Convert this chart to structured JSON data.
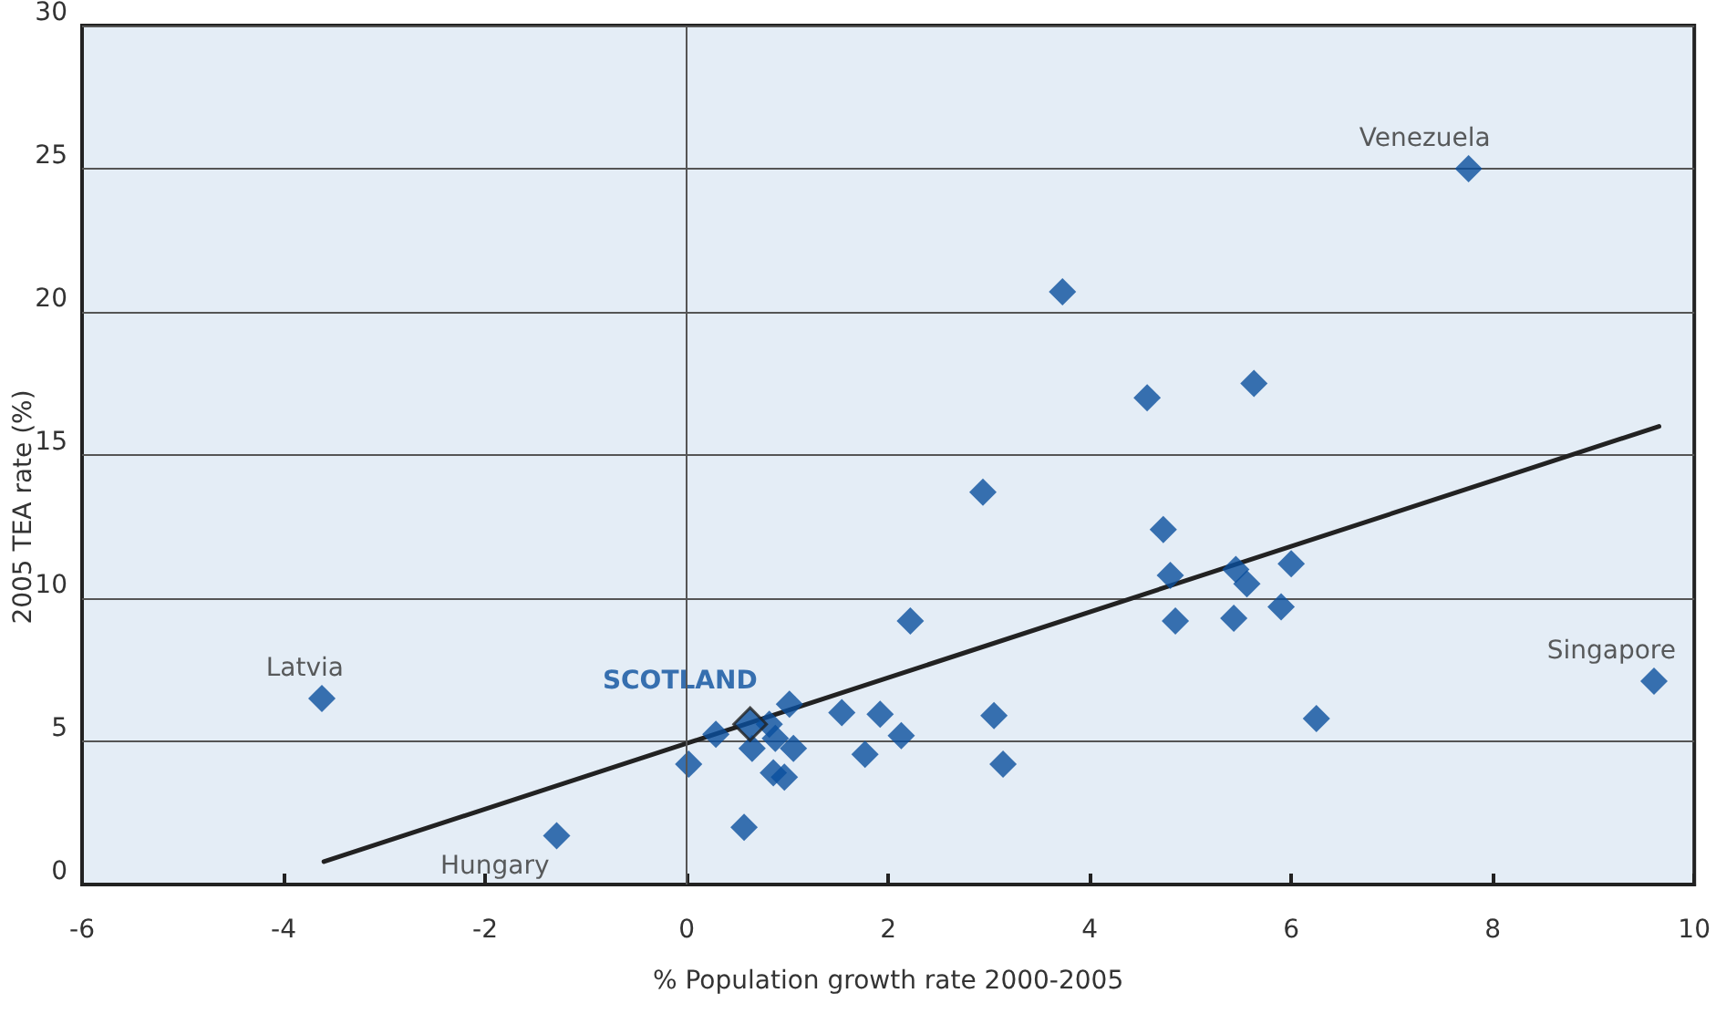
{
  "chart_data": {
    "type": "scatter",
    "xlabel": "% Population growth rate 2000-2005",
    "ylabel": "2005 TEA rate (%)",
    "marker": "diamond",
    "grid": "y",
    "ref_lines": [
      {
        "axis": "x",
        "value": 0,
        "color": "#555555"
      }
    ],
    "xlim": [
      -6,
      10
    ],
    "xticks": [
      -6,
      -4,
      -2,
      0,
      2,
      4,
      6,
      8,
      10
    ],
    "ylim": [
      0,
      30
    ],
    "yticks": [
      0,
      5,
      10,
      15,
      20,
      25,
      30
    ],
    "series": [
      {
        "color": "#0a4f9e",
        "x": [
          7.76,
          3.73,
          4.57,
          5.63,
          2.94,
          4.73,
          4.8,
          5.45,
          5.56,
          6.0,
          4.85,
          5.43,
          5.9,
          2.22,
          6.25,
          9.6,
          -3.62,
          -1.29,
          0.29,
          1.02,
          0.82,
          0.88,
          0.65,
          1.06,
          0.02,
          0.86,
          0.97,
          0.57,
          1.54,
          1.92,
          1.77,
          2.13,
          3.05,
          3.14
        ],
        "values": [
          25.0,
          20.7,
          17.0,
          17.5,
          13.7,
          12.4,
          10.8,
          11.0,
          10.5,
          11.2,
          9.2,
          9.3,
          9.7,
          9.2,
          5.8,
          7.1,
          6.5,
          1.7,
          5.25,
          6.3,
          5.6,
          5.1,
          4.75,
          4.75,
          4.2,
          3.9,
          3.75,
          2.0,
          6.0,
          5.95,
          4.55,
          5.2,
          5.9,
          4.2
        ]
      },
      {
        "name": "SCOTLAND",
        "color": "#0a4f9e",
        "x": [
          0.63
        ],
        "values": [
          5.6
        ]
      },
      {
        "type": "line",
        "color": "#222222",
        "marker": "none",
        "x": [
          -3.6,
          9.65
        ],
        "values": [
          0.8,
          16.0
        ]
      }
    ],
    "annotations": [
      {
        "text": "Venezuela",
        "x": 7.76,
        "y": 25.0
      },
      {
        "text": "Singapore",
        "x": 9.6,
        "y": 7.1
      },
      {
        "text": "Latvia",
        "x": -3.62,
        "y": 6.5
      },
      {
        "text": "Hungary",
        "x": -1.29,
        "y": 1.7
      }
    ]
  }
}
